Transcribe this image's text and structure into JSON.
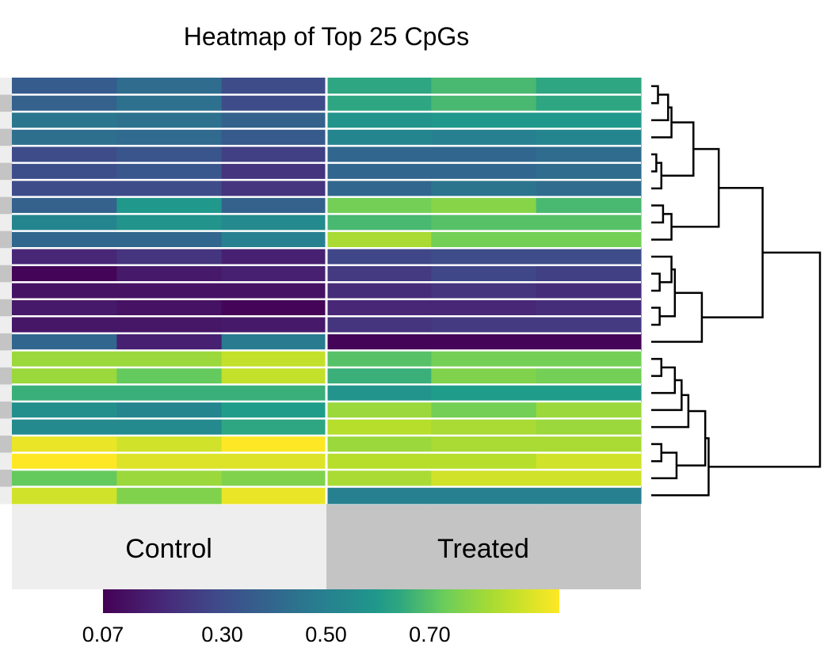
{
  "chart_data": {
    "type": "heatmap",
    "title": "Heatmap of Top 25 CpGs",
    "groups": [
      "Control",
      "Treated"
    ],
    "colorscale": {
      "name": "viridis",
      "min": 0.07,
      "max": 0.95,
      "tick_labels": [
        "0.07",
        "0.30",
        "0.50",
        "0.70"
      ],
      "tick_values": [
        0.07,
        0.3,
        0.5,
        0.7
      ]
    },
    "rows": 25,
    "columns_per_group": 3,
    "values": [
      [
        0.36,
        0.42,
        0.3,
        0.64,
        0.68,
        0.64
      ],
      [
        0.38,
        0.44,
        0.3,
        0.64,
        0.68,
        0.64
      ],
      [
        0.46,
        0.44,
        0.38,
        0.58,
        0.6,
        0.6
      ],
      [
        0.43,
        0.41,
        0.35,
        0.52,
        0.5,
        0.52
      ],
      [
        0.3,
        0.33,
        0.26,
        0.4,
        0.4,
        0.42
      ],
      [
        0.31,
        0.34,
        0.22,
        0.4,
        0.4,
        0.42
      ],
      [
        0.3,
        0.3,
        0.22,
        0.4,
        0.45,
        0.42
      ],
      [
        0.38,
        0.6,
        0.38,
        0.74,
        0.77,
        0.68
      ],
      [
        0.52,
        0.58,
        0.54,
        0.68,
        0.7,
        0.7
      ],
      [
        0.4,
        0.4,
        0.5,
        0.82,
        0.74,
        0.74
      ],
      [
        0.18,
        0.22,
        0.16,
        0.28,
        0.3,
        0.3
      ],
      [
        0.08,
        0.14,
        0.16,
        0.24,
        0.28,
        0.26
      ],
      [
        0.12,
        0.12,
        0.12,
        0.2,
        0.22,
        0.2
      ],
      [
        0.14,
        0.12,
        0.08,
        0.18,
        0.18,
        0.2
      ],
      [
        0.13,
        0.13,
        0.14,
        0.22,
        0.24,
        0.24
      ],
      [
        0.4,
        0.16,
        0.48,
        0.08,
        0.08,
        0.08
      ],
      [
        0.8,
        0.8,
        0.86,
        0.7,
        0.74,
        0.74
      ],
      [
        0.8,
        0.72,
        0.86,
        0.66,
        0.76,
        0.74
      ],
      [
        0.66,
        0.66,
        0.66,
        0.58,
        0.62,
        0.62
      ],
      [
        0.56,
        0.52,
        0.62,
        0.8,
        0.74,
        0.8
      ],
      [
        0.54,
        0.54,
        0.64,
        0.84,
        0.82,
        0.8
      ],
      [
        0.92,
        0.88,
        0.96,
        0.8,
        0.82,
        0.82
      ],
      [
        0.96,
        0.9,
        0.9,
        0.84,
        0.84,
        0.88
      ],
      [
        0.72,
        0.8,
        0.76,
        0.82,
        0.88,
        0.88
      ],
      [
        0.88,
        0.76,
        0.92,
        0.5,
        0.5,
        0.5
      ]
    ],
    "row_dendrogram": true,
    "grid": false,
    "legend_placement": "bottom",
    "group_colors": {
      "Control": "#eeeeee",
      "Treated": "#c4c4c4"
    },
    "cell_border_color": "#ffffff"
  }
}
